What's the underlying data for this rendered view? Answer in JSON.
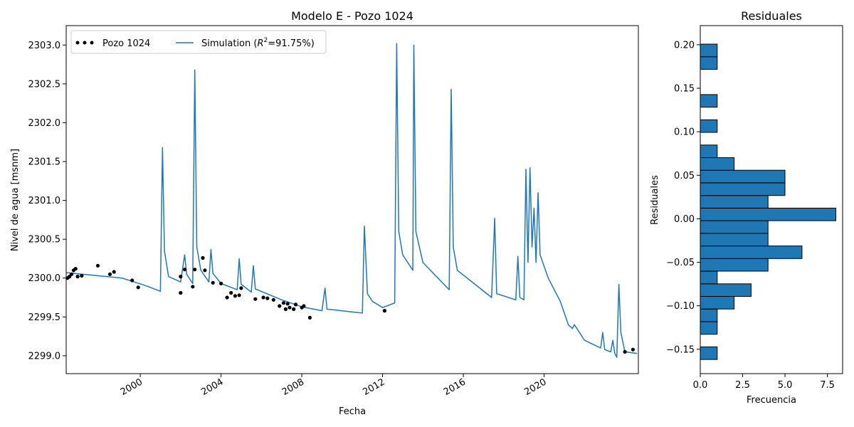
{
  "chart_data": [
    {
      "type": "line",
      "title": "Modelo E - Pozo 1024",
      "xlabel": "Fecha",
      "ylabel": "Nivel de agua [msnm]",
      "xlim": [
        "1996-05-01",
        "2024-09-01"
      ],
      "ylim": [
        2298.77,
        2303.25
      ],
      "x_ticks": [
        "2000",
        "2004",
        "2008",
        "2012",
        "2016",
        "2020"
      ],
      "y_ticks": [
        "2299.0",
        "2299.5",
        "2300.0",
        "2300.5",
        "2301.0",
        "2301.5",
        "2302.0",
        "2302.5",
        "2303.0"
      ],
      "legend_position": "top-left",
      "legend_observed": "Pozo 1024",
      "legend_simulated": "Simulation ($R^2$=91.75%)",
      "colors": {
        "simulation": "#1f77b4",
        "observed": "#000000"
      },
      "series": [
        {
          "name": "Simulation ($R^2$=91.75%)",
          "style": "line",
          "points": [
            [
              "1996.34",
              2300.07
            ],
            [
              "1999.10",
              2300.0
            ],
            [
              "2000.30",
              2299.9
            ],
            [
              "2001.00",
              2299.83
            ],
            [
              "2001.10",
              2301.68
            ],
            [
              "2001.20",
              2300.35
            ],
            [
              "2001.40",
              2300.02
            ],
            [
              "2002.00",
              2299.95
            ],
            [
              "2002.20",
              2300.3
            ],
            [
              "2002.30",
              2300.05
            ],
            [
              "2002.60",
              2299.93
            ],
            [
              "2002.70",
              2302.68
            ],
            [
              "2002.80",
              2300.4
            ],
            [
              "2003.00",
              2300.1
            ],
            [
              "2003.40",
              2299.95
            ],
            [
              "2003.50",
              2300.37
            ],
            [
              "2003.60",
              2300.06
            ],
            [
              "2004.00",
              2299.93
            ],
            [
              "2004.80",
              2299.85
            ],
            [
              "2004.90",
              2300.25
            ],
            [
              "2005.00",
              2299.92
            ],
            [
              "2005.50",
              2299.82
            ],
            [
              "2005.60",
              2300.16
            ],
            [
              "2005.70",
              2299.86
            ],
            [
              "2007.00",
              2299.72
            ],
            [
              "2008.00",
              2299.63
            ],
            [
              "2009.00",
              2299.58
            ],
            [
              "2009.15",
              2299.87
            ],
            [
              "2009.25",
              2299.6
            ],
            [
              "2011.00",
              2299.55
            ],
            [
              "2011.10",
              2300.67
            ],
            [
              "2011.25",
              2299.8
            ],
            [
              "2011.50",
              2299.7
            ],
            [
              "2012.00",
              2299.62
            ],
            [
              "2012.60",
              2299.68
            ],
            [
              "2012.70",
              2303.02
            ],
            [
              "2012.80",
              2300.6
            ],
            [
              "2013.00",
              2300.3
            ],
            [
              "2013.50",
              2300.1
            ],
            [
              "2013.55",
              2303.0
            ],
            [
              "2013.65",
              2300.6
            ],
            [
              "2014.00",
              2300.2
            ],
            [
              "2015.30",
              2299.85
            ],
            [
              "2015.40",
              2302.43
            ],
            [
              "2015.50",
              2300.4
            ],
            [
              "2015.70",
              2300.1
            ],
            [
              "2017.40",
              2299.75
            ],
            [
              "2017.55",
              2300.77
            ],
            [
              "2017.65",
              2299.8
            ],
            [
              "2018.60",
              2299.72
            ],
            [
              "2018.70",
              2300.28
            ],
            [
              "2018.80",
              2299.75
            ],
            [
              "2019.00",
              2299.72
            ],
            [
              "2019.10",
              2301.4
            ],
            [
              "2019.20",
              2300.2
            ],
            [
              "2019.30",
              2301.42
            ],
            [
              "2019.40",
              2300.4
            ],
            [
              "2019.50",
              2300.9
            ],
            [
              "2019.60",
              2300.2
            ],
            [
              "2019.70",
              2301.1
            ],
            [
              "2019.80",
              2300.3
            ],
            [
              "2020.20",
              2300.0
            ],
            [
              "2020.80",
              2299.7
            ],
            [
              "2021.20",
              2299.4
            ],
            [
              "2021.40",
              2299.35
            ],
            [
              "2021.50",
              2299.4
            ],
            [
              "2022.00",
              2299.2
            ],
            [
              "2022.80",
              2299.1
            ],
            [
              "2022.90",
              2299.3
            ],
            [
              "2023.00",
              2299.08
            ],
            [
              "2023.30",
              2299.05
            ],
            [
              "2023.40",
              2299.2
            ],
            [
              "2023.50",
              2299.03
            ],
            [
              "2023.60",
              2298.98
            ],
            [
              "2023.70",
              2299.92
            ],
            [
              "2023.80",
              2299.3
            ],
            [
              "2024.00",
              2299.05
            ],
            [
              "2024.60",
              2299.03
            ]
          ]
        },
        {
          "name": "Pozo 1024",
          "style": "scatter",
          "points": [
            [
              "1996.4",
              2300.0
            ],
            [
              "1996.5",
              2300.02
            ],
            [
              "1996.6",
              2300.05
            ],
            [
              "1996.7",
              2300.1
            ],
            [
              "1996.8",
              2300.12
            ],
            [
              "1996.9",
              2300.02
            ],
            [
              "1997.1",
              2300.03
            ],
            [
              "1997.9",
              2300.16
            ],
            [
              "1998.5",
              2300.05
            ],
            [
              "1998.7",
              2300.08
            ],
            [
              "1999.6",
              2299.97
            ],
            [
              "1999.9",
              2299.88
            ],
            [
              "2002.0",
              2299.81
            ],
            [
              "2002.0",
              2300.02
            ],
            [
              "2002.2",
              2300.11
            ],
            [
              "2002.6",
              2299.89
            ],
            [
              "2002.7",
              2300.11
            ],
            [
              "2003.1",
              2300.26
            ],
            [
              "2003.2",
              2300.1
            ],
            [
              "2003.6",
              2299.94
            ],
            [
              "2004.0",
              2299.93
            ],
            [
              "2004.3",
              2299.75
            ],
            [
              "2004.5",
              2299.81
            ],
            [
              "2004.7",
              2299.77
            ],
            [
              "2004.9",
              2299.78
            ],
            [
              "2005.0",
              2299.87
            ],
            [
              "2005.7",
              2299.73
            ],
            [
              "2006.1",
              2299.75
            ],
            [
              "2006.3",
              2299.74
            ],
            [
              "2006.6",
              2299.72
            ],
            [
              "2006.9",
              2299.64
            ],
            [
              "2007.1",
              2299.68
            ],
            [
              "2007.2",
              2299.6
            ],
            [
              "2007.3",
              2299.67
            ],
            [
              "2007.4",
              2299.62
            ],
            [
              "2007.6",
              2299.6
            ],
            [
              "2007.7",
              2299.66
            ],
            [
              "2008.0",
              2299.62
            ],
            [
              "2008.1",
              2299.64
            ],
            [
              "2008.4",
              2299.49
            ],
            [
              "2012.1",
              2299.58
            ],
            [
              "2024.0",
              2299.05
            ],
            [
              "2024.4",
              2299.08
            ]
          ]
        }
      ]
    },
    {
      "type": "bar",
      "orientation": "horizontal",
      "title": "Residuales",
      "xlabel": "Frecuencia",
      "ylabel": "Residuales",
      "xlim": [
        0,
        8.4
      ],
      "ylim": [
        -0.178,
        0.222
      ],
      "x_ticks": [
        "0.0",
        "2.5",
        "5.0",
        "7.5"
      ],
      "y_ticks": [
        "−0.15",
        "−0.10",
        "−0.05",
        "0.00",
        "0.05",
        "0.10",
        "0.15",
        "0.20"
      ],
      "bin_width": 0.0145,
      "colors": {
        "bar_fill": "#1f77b4",
        "bar_edge": "#000000"
      },
      "bins": [
        {
          "center": -0.1545,
          "count": 1
        },
        {
          "center": -0.1255,
          "count": 1
        },
        {
          "center": -0.111,
          "count": 1
        },
        {
          "center": -0.0965,
          "count": 2
        },
        {
          "center": -0.082,
          "count": 3
        },
        {
          "center": -0.0675,
          "count": 1
        },
        {
          "center": -0.053,
          "count": 4
        },
        {
          "center": -0.0385,
          "count": 6
        },
        {
          "center": -0.024,
          "count": 4
        },
        {
          "center": -0.0095,
          "count": 4
        },
        {
          "center": 0.005,
          "count": 8
        },
        {
          "center": 0.0195,
          "count": 4
        },
        {
          "center": 0.034,
          "count": 5
        },
        {
          "center": 0.0485,
          "count": 5
        },
        {
          "center": 0.063,
          "count": 2
        },
        {
          "center": 0.0775,
          "count": 1
        },
        {
          "center": 0.1065,
          "count": 1
        },
        {
          "center": 0.1355,
          "count": 1
        },
        {
          "center": 0.179,
          "count": 1
        },
        {
          "center": 0.1935,
          "count": 1
        }
      ]
    }
  ]
}
